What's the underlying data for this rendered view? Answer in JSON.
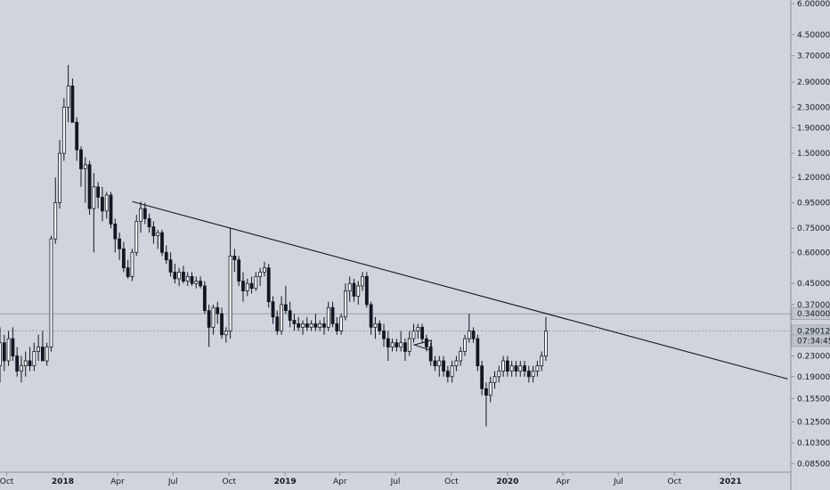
{
  "chart_data": {
    "type": "candlestick",
    "scale": "log",
    "ylim": [
      0.0785,
      6.2
    ],
    "xlim": [
      "2017-09-20",
      "2021-04-10"
    ],
    "y_ticks": [
      "6.00000",
      "4.50000",
      "3.70000",
      "2.90000",
      "2.30000",
      "1.90000",
      "1.50000",
      "1.20000",
      "0.95000",
      "0.75000",
      "0.60000",
      "0.45000",
      "0.37000",
      "0.29012",
      "0.23000",
      "0.19000",
      "0.15500",
      "0.12500",
      "0.10300",
      "0.08500"
    ],
    "x_ticks": [
      {
        "label": "Oct",
        "date": "2017-10-01",
        "year": false
      },
      {
        "label": "2018",
        "date": "2018-01-01",
        "year": true
      },
      {
        "label": "Apr",
        "date": "2018-04-01",
        "year": false
      },
      {
        "label": "Jul",
        "date": "2018-07-01",
        "year": false
      },
      {
        "label": "Oct",
        "date": "2018-10-01",
        "year": false
      },
      {
        "label": "2019",
        "date": "2019-01-01",
        "year": true
      },
      {
        "label": "Apr",
        "date": "2019-04-01",
        "year": false
      },
      {
        "label": "Jul",
        "date": "2019-07-01",
        "year": false
      },
      {
        "label": "Oct",
        "date": "2019-10-01",
        "year": false
      },
      {
        "label": "2020",
        "date": "2020-01-01",
        "year": true
      },
      {
        "label": "Apr",
        "date": "2020-04-01",
        "year": false
      },
      {
        "label": "Jul",
        "date": "2020-07-01",
        "year": false
      },
      {
        "label": "Oct",
        "date": "2020-10-01",
        "year": false
      },
      {
        "label": "2021",
        "date": "2021-01-01",
        "year": true
      }
    ],
    "badges": [
      {
        "label": "0.34000",
        "value": 0.34,
        "kind": "level"
      },
      {
        "label": "0.29012",
        "value": 0.29012,
        "kind": "price"
      },
      {
        "label": "07:34:45",
        "value": 0.265,
        "kind": "countdown"
      }
    ],
    "levels": [
      0.34,
      0.29012
    ],
    "trendline": {
      "start": {
        "date": "2018-04-25",
        "value": 0.96
      },
      "end": {
        "date": "2021-04-05",
        "value": 0.186
      }
    },
    "triangle": [
      {
        "date": "2019-08-01",
        "value": 0.255
      },
      {
        "date": "2019-08-29",
        "value": 0.266
      },
      {
        "date": "2019-08-29",
        "value": 0.242
      }
    ],
    "colors": {
      "up": "#ffffff",
      "down": "#131722",
      "wick": "#131722",
      "background": "#d1d4dc",
      "line": "#131722"
    },
    "candles_start": "2017-09-20",
    "candle_days": 7,
    "candles": [
      [
        0.21,
        0.3,
        0.18,
        0.26
      ],
      [
        0.26,
        0.28,
        0.2,
        0.22
      ],
      [
        0.22,
        0.29,
        0.21,
        0.27
      ],
      [
        0.27,
        0.3,
        0.22,
        0.23
      ],
      [
        0.23,
        0.25,
        0.19,
        0.2
      ],
      [
        0.2,
        0.23,
        0.18,
        0.21
      ],
      [
        0.21,
        0.24,
        0.19,
        0.22
      ],
      [
        0.22,
        0.25,
        0.2,
        0.21
      ],
      [
        0.21,
        0.26,
        0.2,
        0.24
      ],
      [
        0.24,
        0.28,
        0.22,
        0.25
      ],
      [
        0.25,
        0.29,
        0.23,
        0.22
      ],
      [
        0.22,
        0.26,
        0.21,
        0.25
      ],
      [
        0.25,
        0.7,
        0.24,
        0.68
      ],
      [
        0.68,
        1.2,
        0.65,
        0.95
      ],
      [
        0.95,
        1.7,
        0.9,
        1.5
      ],
      [
        1.5,
        2.5,
        1.4,
        2.3
      ],
      [
        2.3,
        3.4,
        2.0,
        2.8
      ],
      [
        2.8,
        3.0,
        2.0,
        2.0
      ],
      [
        2.0,
        2.1,
        1.4,
        1.55
      ],
      [
        1.55,
        1.6,
        1.1,
        1.3
      ],
      [
        1.3,
        1.45,
        0.95,
        1.35
      ],
      [
        1.35,
        1.4,
        0.85,
        0.9
      ],
      [
        0.9,
        1.25,
        0.6,
        1.1
      ],
      [
        1.1,
        1.15,
        0.9,
        1.0
      ],
      [
        1.0,
        1.1,
        0.8,
        0.88
      ],
      [
        0.88,
        1.05,
        0.82,
        1.02
      ],
      [
        1.02,
        1.05,
        0.75,
        0.78
      ],
      [
        0.78,
        0.82,
        0.6,
        0.68
      ],
      [
        0.68,
        0.72,
        0.56,
        0.62
      ],
      [
        0.62,
        0.66,
        0.5,
        0.52
      ],
      [
        0.52,
        0.56,
        0.47,
        0.48
      ],
      [
        0.48,
        0.62,
        0.46,
        0.6
      ],
      [
        0.6,
        0.85,
        0.58,
        0.8
      ],
      [
        0.8,
        0.96,
        0.72,
        0.9
      ],
      [
        0.9,
        0.95,
        0.78,
        0.82
      ],
      [
        0.82,
        0.86,
        0.72,
        0.76
      ],
      [
        0.76,
        0.8,
        0.65,
        0.7
      ],
      [
        0.7,
        0.74,
        0.62,
        0.72
      ],
      [
        0.72,
        0.74,
        0.58,
        0.6
      ],
      [
        0.6,
        0.64,
        0.54,
        0.56
      ],
      [
        0.56,
        0.6,
        0.48,
        0.5
      ],
      [
        0.5,
        0.54,
        0.45,
        0.47
      ],
      [
        0.47,
        0.52,
        0.44,
        0.5
      ],
      [
        0.5,
        0.53,
        0.45,
        0.46
      ],
      [
        0.46,
        0.5,
        0.44,
        0.48
      ],
      [
        0.48,
        0.5,
        0.44,
        0.45
      ],
      [
        0.45,
        0.48,
        0.43,
        0.46
      ],
      [
        0.46,
        0.48,
        0.43,
        0.44
      ],
      [
        0.44,
        0.46,
        0.34,
        0.35
      ],
      [
        0.35,
        0.37,
        0.25,
        0.3
      ],
      [
        0.3,
        0.37,
        0.28,
        0.36
      ],
      [
        0.36,
        0.38,
        0.31,
        0.34
      ],
      [
        0.34,
        0.36,
        0.27,
        0.28
      ],
      [
        0.28,
        0.3,
        0.26,
        0.29
      ],
      [
        0.29,
        0.75,
        0.27,
        0.58
      ],
      [
        0.58,
        0.62,
        0.5,
        0.56
      ],
      [
        0.56,
        0.58,
        0.44,
        0.46
      ],
      [
        0.46,
        0.5,
        0.38,
        0.42
      ],
      [
        0.42,
        0.47,
        0.4,
        0.45
      ],
      [
        0.45,
        0.48,
        0.41,
        0.43
      ],
      [
        0.43,
        0.5,
        0.42,
        0.48
      ],
      [
        0.48,
        0.52,
        0.44,
        0.5
      ],
      [
        0.5,
        0.55,
        0.48,
        0.52
      ],
      [
        0.52,
        0.54,
        0.36,
        0.38
      ],
      [
        0.38,
        0.4,
        0.31,
        0.33
      ],
      [
        0.33,
        0.35,
        0.28,
        0.29
      ],
      [
        0.29,
        0.4,
        0.28,
        0.37
      ],
      [
        0.37,
        0.44,
        0.34,
        0.35
      ],
      [
        0.35,
        0.38,
        0.3,
        0.32
      ],
      [
        0.32,
        0.34,
        0.29,
        0.31
      ],
      [
        0.31,
        0.33,
        0.29,
        0.3
      ],
      [
        0.3,
        0.32,
        0.28,
        0.31
      ],
      [
        0.31,
        0.33,
        0.29,
        0.3
      ],
      [
        0.3,
        0.32,
        0.29,
        0.31
      ],
      [
        0.31,
        0.34,
        0.29,
        0.3
      ],
      [
        0.3,
        0.32,
        0.29,
        0.31
      ],
      [
        0.31,
        0.33,
        0.28,
        0.3
      ],
      [
        0.3,
        0.38,
        0.29,
        0.36
      ],
      [
        0.36,
        0.38,
        0.3,
        0.31
      ],
      [
        0.31,
        0.33,
        0.28,
        0.29
      ],
      [
        0.29,
        0.34,
        0.28,
        0.33
      ],
      [
        0.33,
        0.45,
        0.32,
        0.42
      ],
      [
        0.42,
        0.48,
        0.38,
        0.45
      ],
      [
        0.45,
        0.47,
        0.38,
        0.4
      ],
      [
        0.4,
        0.46,
        0.37,
        0.44
      ],
      [
        0.44,
        0.5,
        0.42,
        0.48
      ],
      [
        0.48,
        0.5,
        0.36,
        0.37
      ],
      [
        0.37,
        0.38,
        0.28,
        0.3
      ],
      [
        0.3,
        0.33,
        0.27,
        0.31
      ],
      [
        0.31,
        0.32,
        0.28,
        0.29
      ],
      [
        0.29,
        0.31,
        0.25,
        0.27
      ],
      [
        0.27,
        0.29,
        0.22,
        0.25
      ],
      [
        0.25,
        0.27,
        0.24,
        0.26
      ],
      [
        0.26,
        0.27,
        0.24,
        0.25
      ],
      [
        0.25,
        0.29,
        0.24,
        0.26
      ],
      [
        0.26,
        0.27,
        0.22,
        0.24
      ],
      [
        0.24,
        0.29,
        0.23,
        0.27
      ],
      [
        0.27,
        0.31,
        0.26,
        0.29
      ],
      [
        0.29,
        0.31,
        0.27,
        0.3
      ],
      [
        0.3,
        0.31,
        0.26,
        0.27
      ],
      [
        0.27,
        0.28,
        0.24,
        0.25
      ],
      [
        0.25,
        0.26,
        0.21,
        0.22
      ],
      [
        0.22,
        0.23,
        0.2,
        0.21
      ],
      [
        0.21,
        0.23,
        0.19,
        0.22
      ],
      [
        0.22,
        0.23,
        0.19,
        0.2
      ],
      [
        0.2,
        0.21,
        0.18,
        0.19
      ],
      [
        0.19,
        0.22,
        0.18,
        0.21
      ],
      [
        0.21,
        0.23,
        0.2,
        0.22
      ],
      [
        0.22,
        0.25,
        0.21,
        0.24
      ],
      [
        0.24,
        0.28,
        0.23,
        0.27
      ],
      [
        0.27,
        0.34,
        0.26,
        0.29
      ],
      [
        0.29,
        0.3,
        0.26,
        0.27
      ],
      [
        0.27,
        0.28,
        0.2,
        0.21
      ],
      [
        0.21,
        0.22,
        0.16,
        0.17
      ],
      [
        0.17,
        0.18,
        0.12,
        0.16
      ],
      [
        0.16,
        0.19,
        0.15,
        0.18
      ],
      [
        0.18,
        0.2,
        0.17,
        0.19
      ],
      [
        0.19,
        0.21,
        0.18,
        0.2
      ],
      [
        0.2,
        0.23,
        0.19,
        0.22
      ],
      [
        0.22,
        0.23,
        0.19,
        0.2
      ],
      [
        0.2,
        0.22,
        0.19,
        0.21
      ],
      [
        0.21,
        0.22,
        0.19,
        0.2
      ],
      [
        0.2,
        0.22,
        0.19,
        0.21
      ],
      [
        0.21,
        0.22,
        0.19,
        0.2
      ],
      [
        0.2,
        0.21,
        0.18,
        0.19
      ],
      [
        0.19,
        0.21,
        0.18,
        0.2
      ],
      [
        0.2,
        0.22,
        0.19,
        0.21
      ],
      [
        0.21,
        0.24,
        0.2,
        0.23
      ],
      [
        0.23,
        0.33,
        0.22,
        0.29
      ]
    ]
  }
}
